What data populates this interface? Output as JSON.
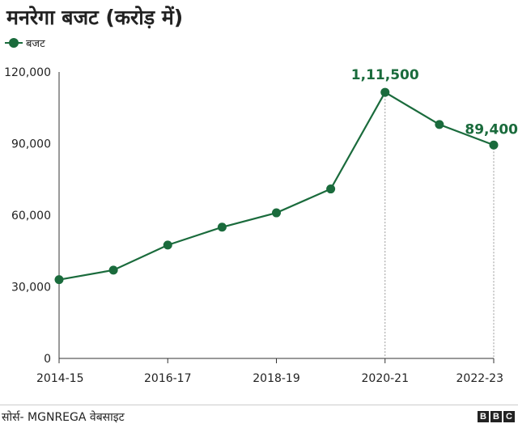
{
  "title": "मनरेगा बजट (करोड़ में)",
  "source": "सोर्स- MGNREGA वेबसाइट",
  "logo": [
    "B",
    "B",
    "C"
  ],
  "colors": {
    "line": "#1a6b3c",
    "axis": "#333333",
    "grid": "#999999"
  },
  "chart_data": {
    "type": "line",
    "x": [
      "2014-15",
      "2015-16",
      "2016-17",
      "2017-18",
      "2018-19",
      "2019-20",
      "2020-21",
      "2021-22",
      "2022-23"
    ],
    "series": [
      {
        "name": "बजट",
        "values": [
          33000,
          37000,
          47500,
          55000,
          61000,
          71000,
          111500,
          98000,
          89400
        ]
      }
    ],
    "xticks": [
      "2014-15",
      "2016-17",
      "2018-19",
      "2020-21",
      "2022-23"
    ],
    "yticks": [
      "0",
      "30,000",
      "60,000",
      "90,000",
      "120,000"
    ],
    "ylim": [
      0,
      120000
    ],
    "annotations": [
      {
        "x": "2020-21",
        "text": "1,11,500"
      },
      {
        "x": "2022-23",
        "text": "89,400"
      }
    ],
    "legend": "top-left",
    "grid": false
  }
}
